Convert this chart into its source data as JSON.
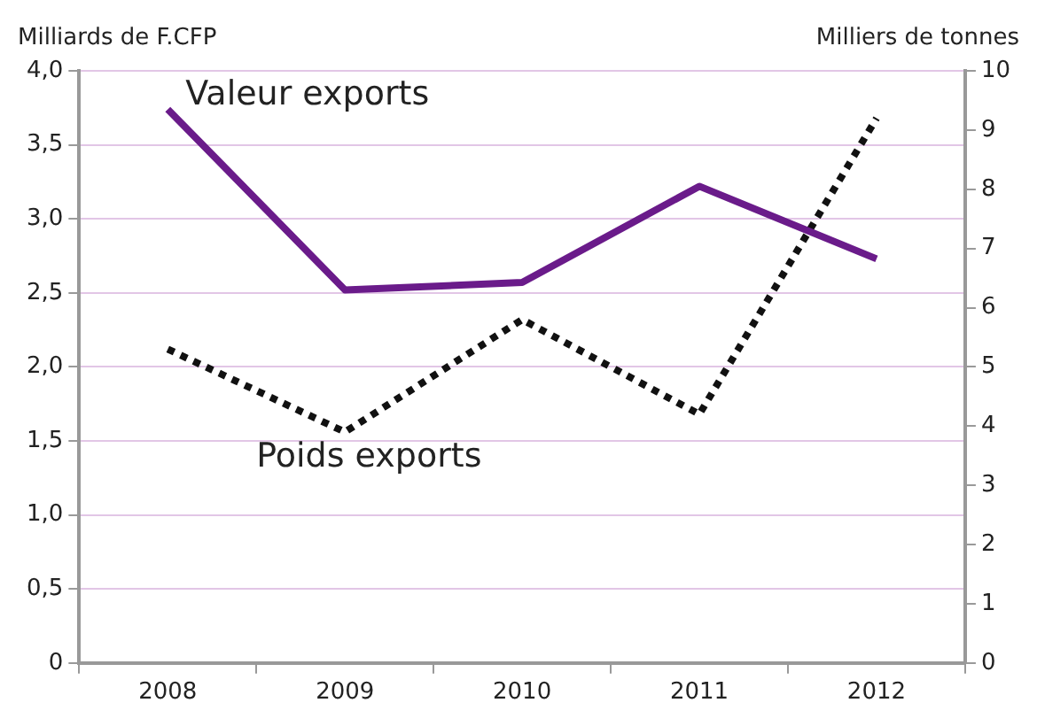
{
  "chart_data": {
    "type": "line",
    "ylabel": "Milliards de F.CFP",
    "y2label": "Milliers de tonnes",
    "categories": [
      "2008",
      "2009",
      "2010",
      "2011",
      "2012"
    ],
    "series": [
      {
        "name": "Valeur exports",
        "color": "#6a1b8a",
        "values": [
          3.74,
          2.52,
          2.57,
          3.22,
          2.73
        ],
        "line_style": "solid"
      },
      {
        "name": "Poids exports",
        "color": "#111111",
        "values": [
          5.3,
          3.9,
          5.8,
          4.2,
          9.2
        ],
        "axis": "y2",
        "line_style": "dotted"
      }
    ],
    "ylim": [
      0,
      4
    ],
    "yticks": [
      0,
      {
        "value": 0.5,
        "label": "0,5"
      },
      {
        "value": 1,
        "label": "1,0"
      },
      {
        "value": 1.5,
        "label": "1,5"
      },
      {
        "value": 2,
        "label": "2,0"
      },
      {
        "value": 2.5,
        "label": "2,5"
      },
      {
        "value": 3,
        "label": "3,0"
      },
      {
        "value": 3.5,
        "label": "3,5"
      },
      {
        "value": 4,
        "label": "4,0"
      }
    ],
    "y2lim": [
      0,
      10
    ],
    "y2ticks": [
      0,
      1,
      2,
      3,
      4,
      5,
      6,
      7,
      8,
      9,
      10
    ],
    "grid": "y",
    "legend": false,
    "marker": "none"
  }
}
